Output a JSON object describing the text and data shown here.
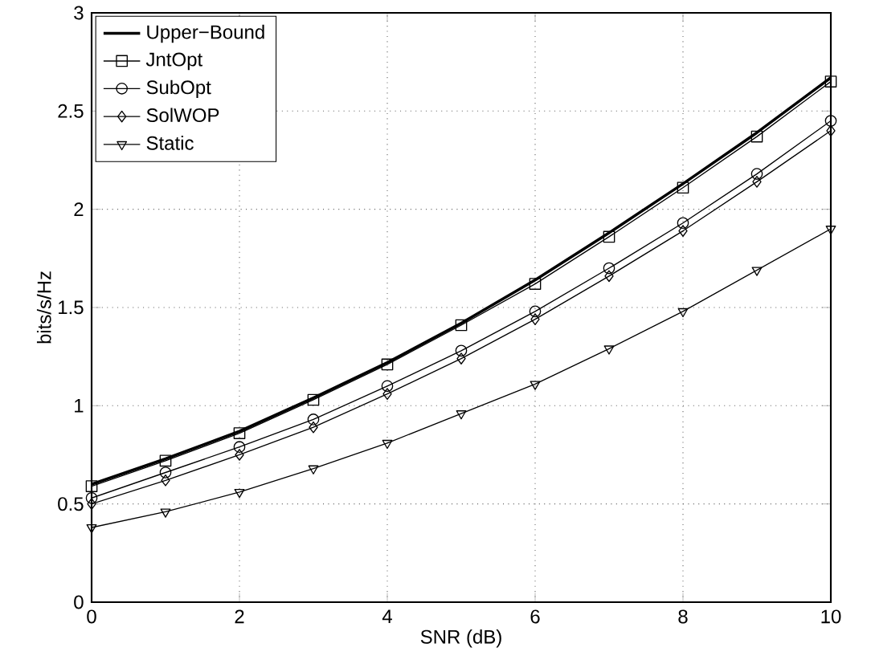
{
  "chart_data": {
    "type": "line",
    "xlabel": "SNR (dB)",
    "ylabel": "bits/s/Hz",
    "x": [
      0,
      1,
      2,
      3,
      4,
      5,
      6,
      7,
      8,
      9,
      10
    ],
    "xlim": [
      0,
      10
    ],
    "xticks": [
      0,
      2,
      4,
      6,
      8,
      10
    ],
    "ylim": [
      0,
      3
    ],
    "yticks": [
      0,
      0.5,
      1,
      1.5,
      2,
      2.5,
      3
    ],
    "grid": true,
    "legend": "top left",
    "line_style": "solid",
    "series": [
      {
        "name": "Upper−Bound",
        "color": "#000000",
        "marker": "none",
        "values": [
          0.6,
          0.73,
          0.87,
          1.04,
          1.22,
          1.42,
          1.64,
          1.88,
          2.13,
          2.39,
          2.67
        ]
      },
      {
        "name": "JntOpt",
        "color": "#000000",
        "marker": "square",
        "values": [
          0.59,
          0.72,
          0.86,
          1.03,
          1.21,
          1.41,
          1.62,
          1.86,
          2.11,
          2.37,
          2.65
        ]
      },
      {
        "name": "SubOpt",
        "color": "#000000",
        "marker": "circle",
        "values": [
          0.53,
          0.66,
          0.79,
          0.93,
          1.1,
          1.28,
          1.48,
          1.7,
          1.93,
          2.18,
          2.45
        ]
      },
      {
        "name": "SolWOP",
        "color": "#000000",
        "marker": "diamond",
        "values": [
          0.5,
          0.62,
          0.75,
          0.89,
          1.06,
          1.24,
          1.44,
          1.66,
          1.89,
          2.14,
          2.4
        ]
      },
      {
        "name": "Static",
        "color": "#000000",
        "marker": "triangle",
        "values": [
          0.38,
          0.46,
          0.56,
          0.68,
          0.81,
          0.96,
          1.11,
          1.29,
          1.48,
          1.69,
          1.9
        ]
      }
    ]
  }
}
